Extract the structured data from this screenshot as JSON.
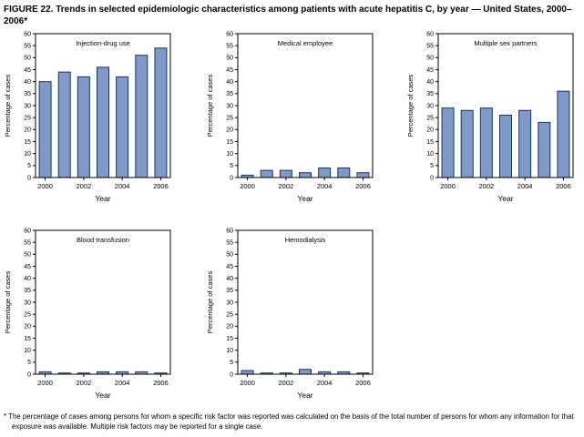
{
  "figure": {
    "title": "FIGURE 22. Trends in selected epidemiologic characteristics among patients with acute hepatitis C, by year — United States, 2000–2006*",
    "footnote": "* The percentage of cases among persons for whom a specific risk factor was reported was calculated on the basis of the total number of persons for whom any information for that exposure was available. Multiple risk factors may be reported for a single case."
  },
  "colors": {
    "bar_fill": "#7e9ac9",
    "bar_stroke": "#17375d",
    "axis": "#000000"
  },
  "chart_data": [
    {
      "type": "bar",
      "title": "Injection-drug use",
      "categories": [
        "2000",
        "2001",
        "2002",
        "2003",
        "2004",
        "2005",
        "2006"
      ],
      "values": [
        40,
        44,
        42,
        46,
        42,
        51,
        54
      ],
      "xlabel": "Year",
      "ylabel": "Percentage of cases",
      "ylim": [
        0,
        60
      ],
      "ytick_step": 5,
      "xtick_labels": [
        "2000",
        "2002",
        "2004",
        "2006"
      ],
      "grid": false,
      "legend": "none"
    },
    {
      "type": "bar",
      "title": "Medical employee",
      "categories": [
        "2000",
        "2001",
        "2002",
        "2003",
        "2004",
        "2005",
        "2006"
      ],
      "values": [
        1,
        3,
        3,
        2,
        4,
        4,
        2
      ],
      "xlabel": "Year",
      "ylabel": "Percentage of cases",
      "ylim": [
        0,
        60
      ],
      "ytick_step": 5,
      "xtick_labels": [
        "2000",
        "2002",
        "2004",
        "2006"
      ],
      "grid": false,
      "legend": "none"
    },
    {
      "type": "bar",
      "title": "Multiple sex partners",
      "categories": [
        "2000",
        "2001",
        "2002",
        "2003",
        "2004",
        "2005",
        "2006"
      ],
      "values": [
        29,
        28,
        29,
        26,
        28,
        23,
        36
      ],
      "xlabel": "Year",
      "ylabel": "Percentage of cases",
      "ylim": [
        0,
        60
      ],
      "ytick_step": 5,
      "xtick_labels": [
        "2000",
        "2002",
        "2004",
        "2006"
      ],
      "grid": false,
      "legend": "none"
    },
    {
      "type": "bar",
      "title": "Blood transfusion",
      "categories": [
        "2000",
        "2001",
        "2002",
        "2003",
        "2004",
        "2005",
        "2006"
      ],
      "values": [
        1,
        0.5,
        0.5,
        1,
        1,
        1,
        0.5
      ],
      "xlabel": "Year",
      "ylabel": "Percentage of cases",
      "ylim": [
        0,
        60
      ],
      "ytick_step": 5,
      "xtick_labels": [
        "2000",
        "2002",
        "2004",
        "2006"
      ],
      "grid": false,
      "legend": "none"
    },
    {
      "type": "bar",
      "title": "Hemodialysis",
      "categories": [
        "2000",
        "2001",
        "2002",
        "2003",
        "2004",
        "2005",
        "2006"
      ],
      "values": [
        1.5,
        0.5,
        0.5,
        2,
        1,
        1,
        0.5
      ],
      "xlabel": "Year",
      "ylabel": "Percentage of cases",
      "ylim": [
        0,
        60
      ],
      "ytick_step": 5,
      "xtick_labels": [
        "2000",
        "2002",
        "2004",
        "2006"
      ],
      "grid": false,
      "legend": "none"
    }
  ]
}
